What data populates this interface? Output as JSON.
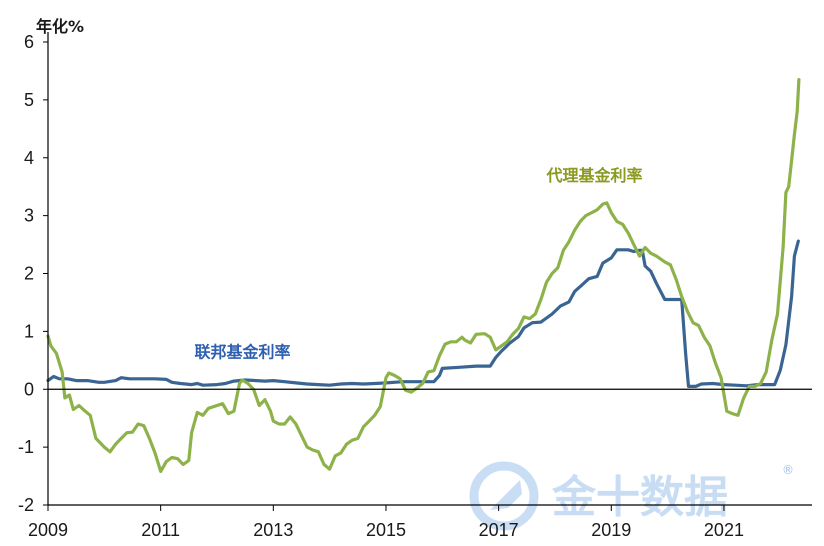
{
  "chart_data": {
    "type": "line",
    "unit_label": "年化%",
    "xlim": [
      2009.0,
      2022.35
    ],
    "ylim": [
      -2,
      6
    ],
    "yticks": [
      "-2",
      "-1",
      "0",
      "1",
      "2",
      "3",
      "4",
      "5",
      "6"
    ],
    "yticks_values": [
      -2,
      -1,
      0,
      1,
      2,
      3,
      4,
      5,
      6
    ],
    "xticks": [
      "2009",
      "2011",
      "2013",
      "2015",
      "2017",
      "2019",
      "2021"
    ],
    "xticks_values": [
      2009,
      2011,
      2013,
      2015,
      2017,
      2019,
      2021
    ],
    "series": [
      {
        "name": "联邦基金利率",
        "color": "#3a6593",
        "points": [
          [
            2009.0,
            0.15
          ],
          [
            2009.1,
            0.22
          ],
          [
            2009.2,
            0.18
          ],
          [
            2009.35,
            0.18
          ],
          [
            2009.5,
            0.15
          ],
          [
            2009.7,
            0.15
          ],
          [
            2009.9,
            0.12
          ],
          [
            2010.0,
            0.12
          ],
          [
            2010.2,
            0.15
          ],
          [
            2010.3,
            0.2
          ],
          [
            2010.45,
            0.18
          ],
          [
            2010.6,
            0.18
          ],
          [
            2010.9,
            0.18
          ],
          [
            2011.1,
            0.17
          ],
          [
            2011.2,
            0.12
          ],
          [
            2011.35,
            0.1
          ],
          [
            2011.55,
            0.08
          ],
          [
            2011.65,
            0.1
          ],
          [
            2011.75,
            0.07
          ],
          [
            2012.0,
            0.08
          ],
          [
            2012.15,
            0.1
          ],
          [
            2012.3,
            0.14
          ],
          [
            2012.5,
            0.16
          ],
          [
            2012.7,
            0.15
          ],
          [
            2012.85,
            0.14
          ],
          [
            2013.0,
            0.15
          ],
          [
            2013.2,
            0.13
          ],
          [
            2013.4,
            0.11
          ],
          [
            2013.6,
            0.09
          ],
          [
            2013.8,
            0.08
          ],
          [
            2014.0,
            0.07
          ],
          [
            2014.2,
            0.09
          ],
          [
            2014.4,
            0.1
          ],
          [
            2014.6,
            0.09
          ],
          [
            2014.8,
            0.1
          ],
          [
            2015.0,
            0.11
          ],
          [
            2015.3,
            0.13
          ],
          [
            2015.6,
            0.13
          ],
          [
            2015.85,
            0.13
          ],
          [
            2015.95,
            0.24
          ],
          [
            2016.0,
            0.36
          ],
          [
            2016.3,
            0.38
          ],
          [
            2016.6,
            0.4
          ],
          [
            2016.85,
            0.4
          ],
          [
            2016.95,
            0.55
          ],
          [
            2017.05,
            0.66
          ],
          [
            2017.2,
            0.8
          ],
          [
            2017.35,
            0.91
          ],
          [
            2017.45,
            1.06
          ],
          [
            2017.6,
            1.15
          ],
          [
            2017.75,
            1.16
          ],
          [
            2017.95,
            1.3
          ],
          [
            2018.1,
            1.44
          ],
          [
            2018.25,
            1.51
          ],
          [
            2018.35,
            1.69
          ],
          [
            2018.5,
            1.82
          ],
          [
            2018.6,
            1.91
          ],
          [
            2018.75,
            1.95
          ],
          [
            2018.85,
            2.18
          ],
          [
            2019.0,
            2.27
          ],
          [
            2019.1,
            2.41
          ],
          [
            2019.3,
            2.41
          ],
          [
            2019.4,
            2.38
          ],
          [
            2019.5,
            2.4
          ],
          [
            2019.55,
            2.4
          ],
          [
            2019.6,
            2.13
          ],
          [
            2019.7,
            2.04
          ],
          [
            2019.8,
            1.83
          ],
          [
            2019.95,
            1.55
          ],
          [
            2020.05,
            1.55
          ],
          [
            2020.15,
            1.55
          ],
          [
            2020.25,
            1.55
          ],
          [
            2020.32,
            0.6
          ],
          [
            2020.37,
            0.05
          ],
          [
            2020.5,
            0.05
          ],
          [
            2020.6,
            0.09
          ],
          [
            2020.8,
            0.1
          ],
          [
            2021.0,
            0.08
          ],
          [
            2021.2,
            0.07
          ],
          [
            2021.4,
            0.06
          ],
          [
            2021.6,
            0.08
          ],
          [
            2021.8,
            0.08
          ],
          [
            2021.9,
            0.08
          ],
          [
            2022.0,
            0.33
          ],
          [
            2022.1,
            0.77
          ],
          [
            2022.2,
            1.6
          ],
          [
            2022.25,
            2.3
          ],
          [
            2022.32,
            2.56
          ]
        ]
      },
      {
        "name": "代理基金利率",
        "color": "#8db249",
        "points": [
          [
            2009.0,
            0.92
          ],
          [
            2009.05,
            0.75
          ],
          [
            2009.15,
            0.62
          ],
          [
            2009.25,
            0.3
          ],
          [
            2009.3,
            -0.15
          ],
          [
            2009.38,
            -0.1
          ],
          [
            2009.45,
            -0.35
          ],
          [
            2009.55,
            -0.28
          ],
          [
            2009.65,
            -0.37
          ],
          [
            2009.75,
            -0.45
          ],
          [
            2009.85,
            -0.85
          ],
          [
            2010.0,
            -1.0
          ],
          [
            2010.1,
            -1.08
          ],
          [
            2010.2,
            -0.95
          ],
          [
            2010.3,
            -0.85
          ],
          [
            2010.4,
            -0.75
          ],
          [
            2010.5,
            -0.74
          ],
          [
            2010.6,
            -0.6
          ],
          [
            2010.7,
            -0.63
          ],
          [
            2010.8,
            -0.85
          ],
          [
            2010.9,
            -1.1
          ],
          [
            2011.0,
            -1.42
          ],
          [
            2011.1,
            -1.25
          ],
          [
            2011.2,
            -1.18
          ],
          [
            2011.3,
            -1.2
          ],
          [
            2011.4,
            -1.3
          ],
          [
            2011.5,
            -1.23
          ],
          [
            2011.55,
            -0.75
          ],
          [
            2011.65,
            -0.4
          ],
          [
            2011.75,
            -0.45
          ],
          [
            2011.85,
            -0.33
          ],
          [
            2012.0,
            -0.28
          ],
          [
            2012.1,
            -0.25
          ],
          [
            2012.2,
            -0.42
          ],
          [
            2012.3,
            -0.38
          ],
          [
            2012.4,
            0.1
          ],
          [
            2012.45,
            0.16
          ],
          [
            2012.55,
            0.1
          ],
          [
            2012.65,
            0.0
          ],
          [
            2012.75,
            -0.28
          ],
          [
            2012.85,
            -0.18
          ],
          [
            2012.95,
            -0.38
          ],
          [
            2013.0,
            -0.55
          ],
          [
            2013.1,
            -0.6
          ],
          [
            2013.2,
            -0.6
          ],
          [
            2013.3,
            -0.48
          ],
          [
            2013.4,
            -0.6
          ],
          [
            2013.5,
            -0.8
          ],
          [
            2013.6,
            -1.0
          ],
          [
            2013.7,
            -1.05
          ],
          [
            2013.8,
            -1.08
          ],
          [
            2013.9,
            -1.3
          ],
          [
            2014.0,
            -1.38
          ],
          [
            2014.1,
            -1.15
          ],
          [
            2014.2,
            -1.1
          ],
          [
            2014.3,
            -0.95
          ],
          [
            2014.4,
            -0.88
          ],
          [
            2014.5,
            -0.85
          ],
          [
            2014.6,
            -0.65
          ],
          [
            2014.7,
            -0.55
          ],
          [
            2014.8,
            -0.45
          ],
          [
            2014.9,
            -0.3
          ],
          [
            2015.0,
            0.2
          ],
          [
            2015.05,
            0.28
          ],
          [
            2015.15,
            0.24
          ],
          [
            2015.25,
            0.18
          ],
          [
            2015.35,
            -0.02
          ],
          [
            2015.45,
            -0.05
          ],
          [
            2015.55,
            0.02
          ],
          [
            2015.65,
            0.1
          ],
          [
            2015.75,
            0.3
          ],
          [
            2015.85,
            0.32
          ],
          [
            2015.95,
            0.58
          ],
          [
            2016.05,
            0.78
          ],
          [
            2016.15,
            0.82
          ],
          [
            2016.25,
            0.82
          ],
          [
            2016.35,
            0.9
          ],
          [
            2016.4,
            0.85
          ],
          [
            2016.5,
            0.8
          ],
          [
            2016.6,
            0.95
          ],
          [
            2016.75,
            0.96
          ],
          [
            2016.85,
            0.9
          ],
          [
            2016.95,
            0.68
          ],
          [
            2017.05,
            0.75
          ],
          [
            2017.15,
            0.82
          ],
          [
            2017.25,
            0.95
          ],
          [
            2017.35,
            1.05
          ],
          [
            2017.45,
            1.25
          ],
          [
            2017.55,
            1.22
          ],
          [
            2017.65,
            1.3
          ],
          [
            2017.75,
            1.55
          ],
          [
            2017.85,
            1.85
          ],
          [
            2017.95,
            2.0
          ],
          [
            2018.05,
            2.1
          ],
          [
            2018.15,
            2.4
          ],
          [
            2018.25,
            2.55
          ],
          [
            2018.35,
            2.75
          ],
          [
            2018.45,
            2.9
          ],
          [
            2018.55,
            3.0
          ],
          [
            2018.65,
            3.05
          ],
          [
            2018.75,
            3.1
          ],
          [
            2018.85,
            3.2
          ],
          [
            2018.92,
            3.22
          ],
          [
            2019.0,
            3.05
          ],
          [
            2019.1,
            2.9
          ],
          [
            2019.2,
            2.85
          ],
          [
            2019.3,
            2.7
          ],
          [
            2019.4,
            2.5
          ],
          [
            2019.5,
            2.3
          ],
          [
            2019.6,
            2.45
          ],
          [
            2019.7,
            2.35
          ],
          [
            2019.8,
            2.3
          ],
          [
            2019.95,
            2.2
          ],
          [
            2020.05,
            2.15
          ],
          [
            2020.15,
            1.9
          ],
          [
            2020.25,
            1.6
          ],
          [
            2020.35,
            1.35
          ],
          [
            2020.45,
            1.15
          ],
          [
            2020.55,
            1.1
          ],
          [
            2020.65,
            0.9
          ],
          [
            2020.75,
            0.75
          ],
          [
            2020.85,
            0.45
          ],
          [
            2020.95,
            0.2
          ],
          [
            2021.05,
            -0.38
          ],
          [
            2021.15,
            -0.42
          ],
          [
            2021.25,
            -0.45
          ],
          [
            2021.35,
            -0.15
          ],
          [
            2021.45,
            0.05
          ],
          [
            2021.55,
            0.05
          ],
          [
            2021.65,
            0.1
          ],
          [
            2021.75,
            0.3
          ],
          [
            2021.85,
            0.85
          ],
          [
            2021.95,
            1.3
          ],
          [
            2022.05,
            2.45
          ],
          [
            2022.1,
            3.4
          ],
          [
            2022.15,
            3.5
          ],
          [
            2022.2,
            3.95
          ],
          [
            2022.25,
            4.4
          ],
          [
            2022.3,
            4.8
          ],
          [
            2022.33,
            5.35
          ]
        ]
      }
    ],
    "annotations": [
      {
        "text": "联邦基金利率",
        "series": 0,
        "x": 2011.6,
        "y": 0.55
      },
      {
        "text": "代理基金利率",
        "series": 1,
        "x": 2017.85,
        "y": 3.6
      }
    ]
  },
  "watermark": {
    "text": "金十数据",
    "reg": "®"
  }
}
